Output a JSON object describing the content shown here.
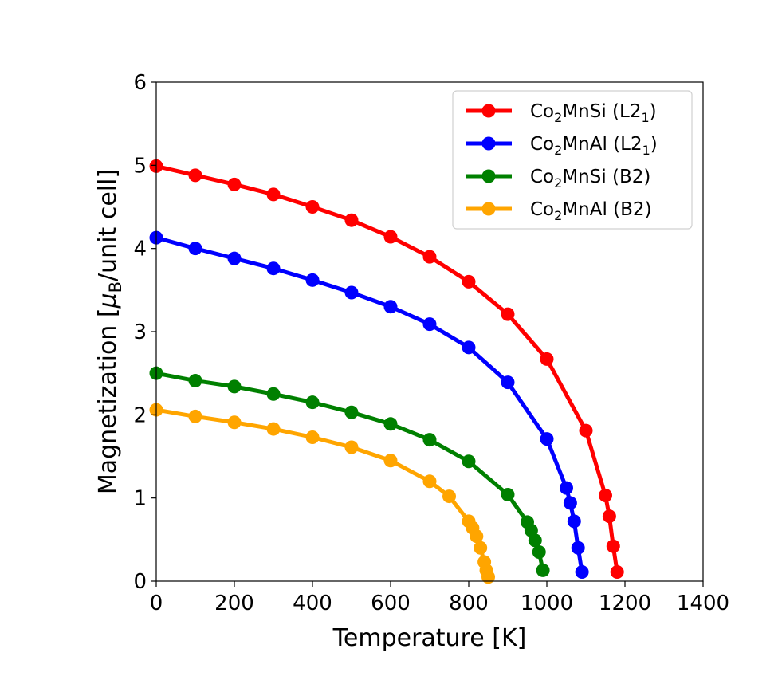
{
  "chart_data": {
    "type": "line",
    "title": "",
    "xlabel": "Temperature [K]",
    "ylabel": {
      "prefix": "Magnetization [",
      "symbol": "μ",
      "subscript": "B",
      "suffix": "/unit cell]"
    },
    "xlim": [
      0,
      1400
    ],
    "ylim": [
      0,
      6
    ],
    "xticks": [
      0,
      200,
      400,
      600,
      800,
      1000,
      1200,
      1400
    ],
    "yticks": [
      0,
      1,
      2,
      3,
      4,
      5,
      6
    ],
    "legend_position": "top-right",
    "series": [
      {
        "name": "Co2MnSi (L21)",
        "label": {
          "a": "Co",
          "a_sub": "2",
          "b": "MnSi (L2",
          "b_sub": "1",
          "c": ")"
        },
        "color": "#ff0000",
        "x": [
          0,
          100,
          200,
          300,
          400,
          500,
          600,
          700,
          800,
          900,
          1000,
          1100,
          1150,
          1160,
          1170,
          1180
        ],
        "y": [
          4.99,
          4.88,
          4.77,
          4.65,
          4.5,
          4.34,
          4.14,
          3.9,
          3.6,
          3.21,
          2.67,
          1.81,
          1.03,
          0.78,
          0.42,
          0.11
        ]
      },
      {
        "name": "Co2MnAl (L21)",
        "label": {
          "a": "Co",
          "a_sub": "2",
          "b": "MnAl (L2",
          "b_sub": "1",
          "c": ")"
        },
        "color": "#0000ff",
        "x": [
          0,
          100,
          200,
          300,
          400,
          500,
          600,
          700,
          800,
          900,
          1000,
          1050,
          1060,
          1070,
          1080,
          1090
        ],
        "y": [
          4.13,
          4.0,
          3.88,
          3.76,
          3.62,
          3.47,
          3.3,
          3.09,
          2.81,
          2.39,
          1.71,
          1.12,
          0.94,
          0.72,
          0.4,
          0.11
        ]
      },
      {
        "name": "Co2MnSi (B2)",
        "label": {
          "a": "Co",
          "a_sub": "2",
          "b": "MnSi (B2)",
          "b_sub": "",
          "c": ""
        },
        "color": "#008000",
        "x": [
          0,
          100,
          200,
          300,
          400,
          500,
          600,
          700,
          800,
          900,
          950,
          960,
          970,
          980,
          990
        ],
        "y": [
          2.5,
          2.41,
          2.34,
          2.25,
          2.15,
          2.03,
          1.89,
          1.7,
          1.44,
          1.04,
          0.71,
          0.61,
          0.49,
          0.35,
          0.13
        ]
      },
      {
        "name": "Co2MnAl (B2)",
        "label": {
          "a": "Co",
          "a_sub": "2",
          "b": "MnAl (B2)",
          "b_sub": "",
          "c": ""
        },
        "color": "#ffa500",
        "x": [
          0,
          100,
          200,
          300,
          400,
          500,
          600,
          700,
          750,
          800,
          810,
          820,
          830,
          840,
          845,
          850
        ],
        "y": [
          2.06,
          1.98,
          1.91,
          1.83,
          1.73,
          1.61,
          1.45,
          1.2,
          1.02,
          0.72,
          0.64,
          0.54,
          0.4,
          0.23,
          0.13,
          0.05
        ]
      }
    ]
  }
}
